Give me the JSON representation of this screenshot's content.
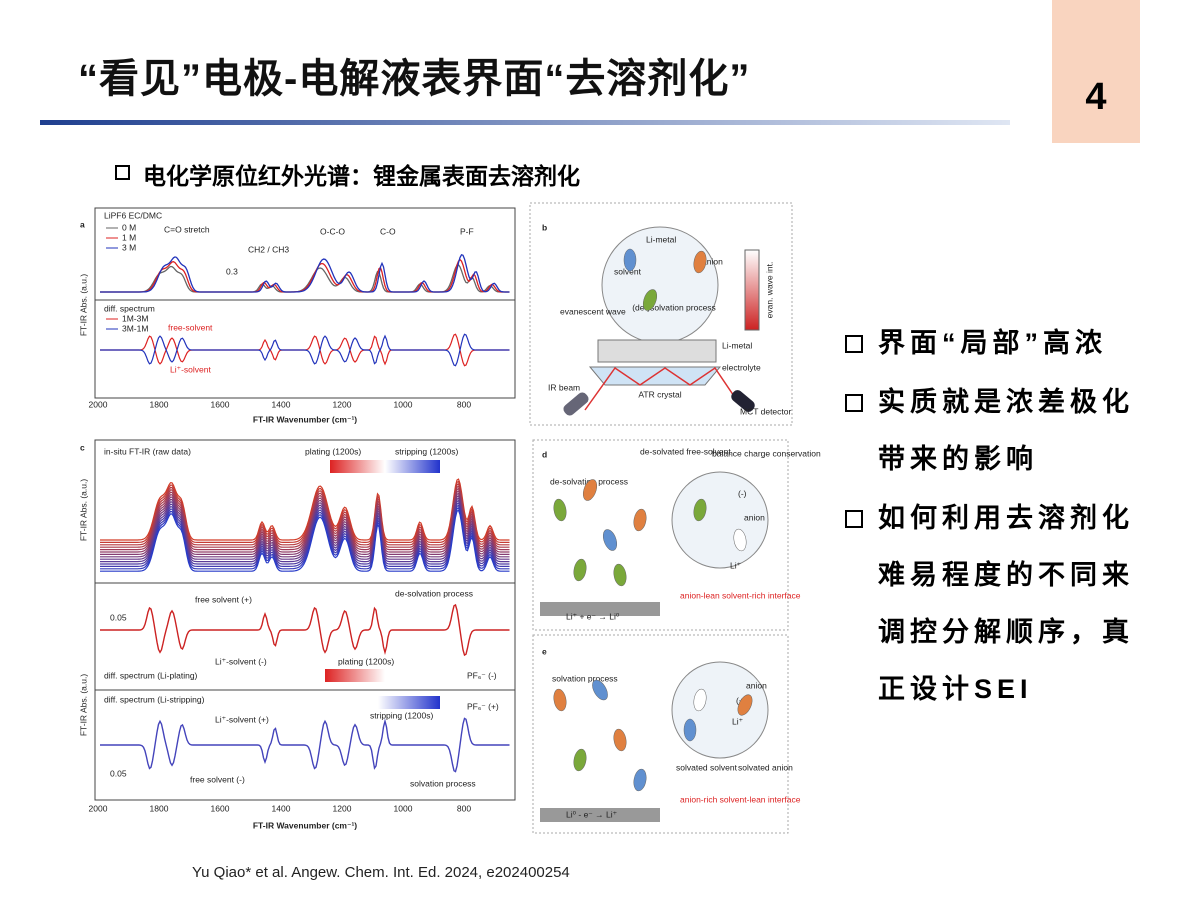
{
  "header": {
    "title": "“看见”电极-电解液表界面“去溶剂化”",
    "page_number": "4"
  },
  "subtitle": "电化学原位红外光谱：锂金属表面去溶剂化",
  "bullets": [
    "界面“局部”高浓",
    "实质就是浓差极化带来的影响",
    "如何利用去溶剂化难易程度的不同来调控分解顺序，真正设计SEI"
  ],
  "citation": "Yu Qiao* et al. Angew. Chem. Int. Ed. 2024, e202400254",
  "figure": {
    "panel_a": {
      "label": "a",
      "electrolyte": "LiPF6 EC/DMC",
      "legend": [
        "0 M",
        "1 M",
        "3 M"
      ],
      "peaks": [
        "C=O stretch",
        "CH2 / CH3",
        "O-C-O",
        "C-O",
        "P-F"
      ],
      "scale": "0.3",
      "diff_title": "diff. spectrum",
      "diff_legend": [
        "1M-3M",
        "3M-1M"
      ],
      "free_solvent": "free-solvent",
      "li_solvent": "Li⁺-solvent",
      "y_label": "FT-IR Abs. (a.u.)",
      "x_ticks": [
        "2000",
        "1800",
        "1600",
        "1400",
        "1200",
        "1000",
        "800"
      ],
      "x_label": "FT-IR Wavenumber (cm⁻¹)"
    },
    "panel_b": {
      "label": "b",
      "li_metal_top": "Li-metal",
      "anion": "anion",
      "solvent": "solvent",
      "process": "(de-)solvation process",
      "evanescent": "evanescent wave",
      "evan_int": "evan. wave int.",
      "li_metal": "Li-metal",
      "electrolyte": "electrolyte",
      "ir_beam": "IR beam",
      "atr": "ATR crystal",
      "detector": "MCT detector"
    },
    "panel_c": {
      "label": "c",
      "raw": "in-situ FT-IR (raw data)",
      "plating": "plating (1200s)",
      "stripping": "stripping (1200s)",
      "free_plus": "free solvent (+)",
      "desolv": "de-solvation process",
      "scale1": "0.05",
      "li_minus": "Li⁺-solvent (-)",
      "plating2": "plating (1200s)",
      "diff_plating": "diff. spectrum (Li-plating)",
      "pf6_minus": "PF₆⁻ (-)",
      "diff_stripping": "diff. spectrum (Li-stripping)",
      "stripping2": "stripping (1200s)",
      "pf6_plus": "PF₆⁻ (+)",
      "li_plus": "Li⁺-solvent (+)",
      "scale2": "0.05",
      "free_minus": "free solvent (-)",
      "solv": "solvation process",
      "y_label": "FT-IR Abs. (a.u.)",
      "y_label2": "FT-IR Abs. (a.u.)",
      "x_ticks": [
        "2000",
        "1800",
        "1600",
        "1400",
        "1200",
        "1000",
        "800"
      ],
      "x_label": "FT-IR Wavenumber (cm⁻¹)"
    },
    "panel_d": {
      "label": "d",
      "desolvated": "de-solvated free-solvent",
      "balance": "balance charge conservation",
      "process": "de-solvation process",
      "minus": "(-)",
      "anion": "anion",
      "li": "Li⁺",
      "interface": "anion-lean solvent-rich interface",
      "reaction": "Li⁺ + e⁻ → Li⁰"
    },
    "panel_e": {
      "label": "e",
      "process": "solvation process",
      "anion": "anion",
      "plus": "(+)",
      "li": "Li⁺",
      "solvated_solvent": "solvated solvent",
      "solvated_anion": "solvated anion",
      "interface": "anion-rich solvent-lean interface",
      "reaction": "Li⁰ - e⁻ → Li⁺"
    }
  }
}
